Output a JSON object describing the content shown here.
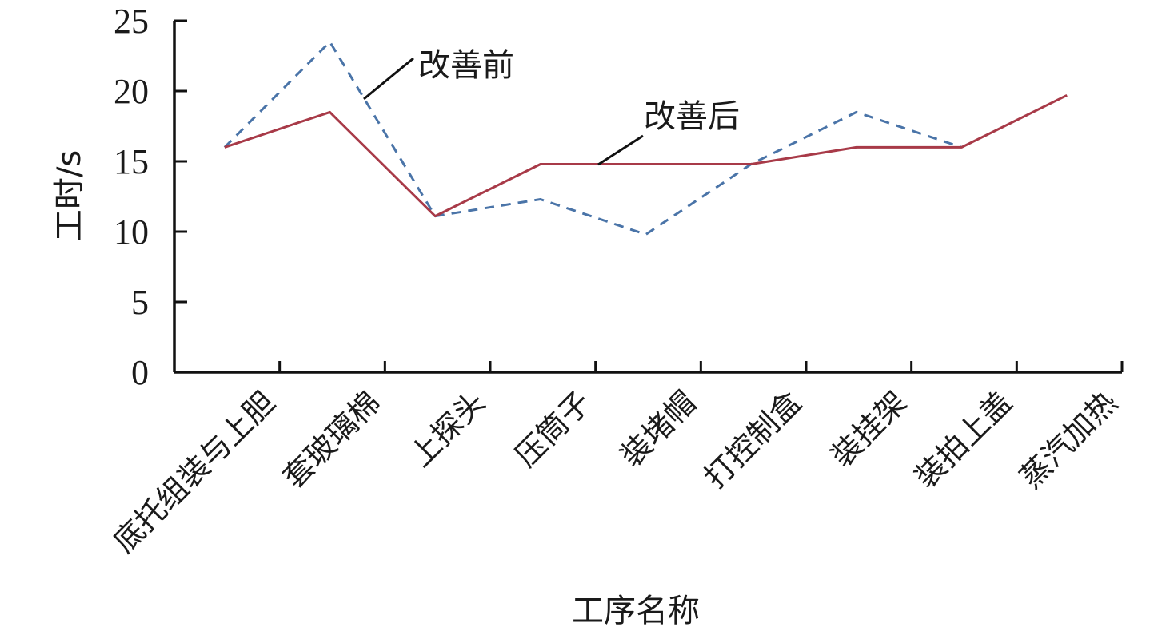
{
  "chart_data": {
    "type": "line",
    "title": "",
    "xlabel": "工序名称",
    "ylabel": "工时/s",
    "ylim": [
      0,
      25
    ],
    "yticks": [
      0,
      5,
      10,
      15,
      20,
      25
    ],
    "grid": false,
    "legend": "none",
    "categories": [
      "底托组装与上胆",
      "套玻璃棉",
      "上探头",
      "压筒子",
      "装堵帽",
      "打控制盒",
      "装挂架",
      "装拍上盖",
      "蒸汽加热"
    ],
    "series": [
      {
        "name": "改善前",
        "style": "dashed",
        "color": "#4a74a8",
        "points": [
          {
            "x": "底托组装与上胆",
            "y": 16.0
          },
          {
            "x": "套玻璃棉",
            "y": 23.5
          },
          {
            "x": "上探头",
            "y": 11.1
          },
          {
            "x": "压筒子",
            "y": 12.3
          },
          {
            "x": "装堵帽",
            "y": 9.8
          },
          {
            "x": "打控制盒",
            "y": 14.8
          },
          {
            "x": "装挂架",
            "y": 18.5
          },
          {
            "x": "装拍上盖",
            "y": 16.0
          }
        ]
      },
      {
        "name": "改善后",
        "style": "solid",
        "color": "#a83a48",
        "points": [
          {
            "x": "底托组装与上胆",
            "y": 16.0
          },
          {
            "x": "套玻璃棉",
            "y": 18.5
          },
          {
            "x": "上探头",
            "y": 11.1
          },
          {
            "x": "压筒子",
            "y": 14.8
          },
          {
            "x": "装堵帽",
            "y": 14.8
          },
          {
            "x": "打控制盒",
            "y": 14.8
          },
          {
            "x": "装挂架",
            "y": 16.0
          },
          {
            "x": "装拍上盖",
            "y": 16.0
          },
          {
            "x": "蒸汽加热",
            "y": 19.7
          }
        ]
      }
    ]
  }
}
